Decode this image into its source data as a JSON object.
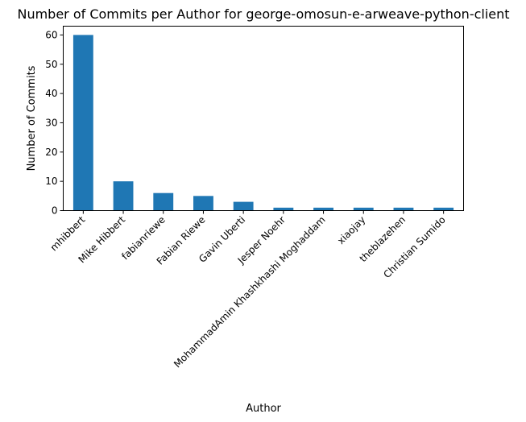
{
  "chart_data": {
    "type": "bar",
    "title": "Number of Commits per Author for george-omosun-e-arweave-python-client",
    "xlabel": "Author",
    "ylabel": "Number of Commits",
    "categories": [
      "mhibbert",
      "Mike Hibbert",
      "fabianriewe",
      "Fabian Riewe",
      "Gavin Uberti",
      "Jesper Noehr",
      "MohammadAmin Khashkhashi Moghaddam",
      "xiaojay",
      "theblazehen",
      "Christian Sumido"
    ],
    "values": [
      60,
      10,
      6,
      5,
      3,
      1,
      1,
      1,
      1,
      1
    ],
    "ylim": [
      0,
      63
    ],
    "yticks": [
      0,
      10,
      20,
      30,
      40,
      50,
      60
    ],
    "color": "#1f77b4",
    "grid": false,
    "legend": "none"
  }
}
